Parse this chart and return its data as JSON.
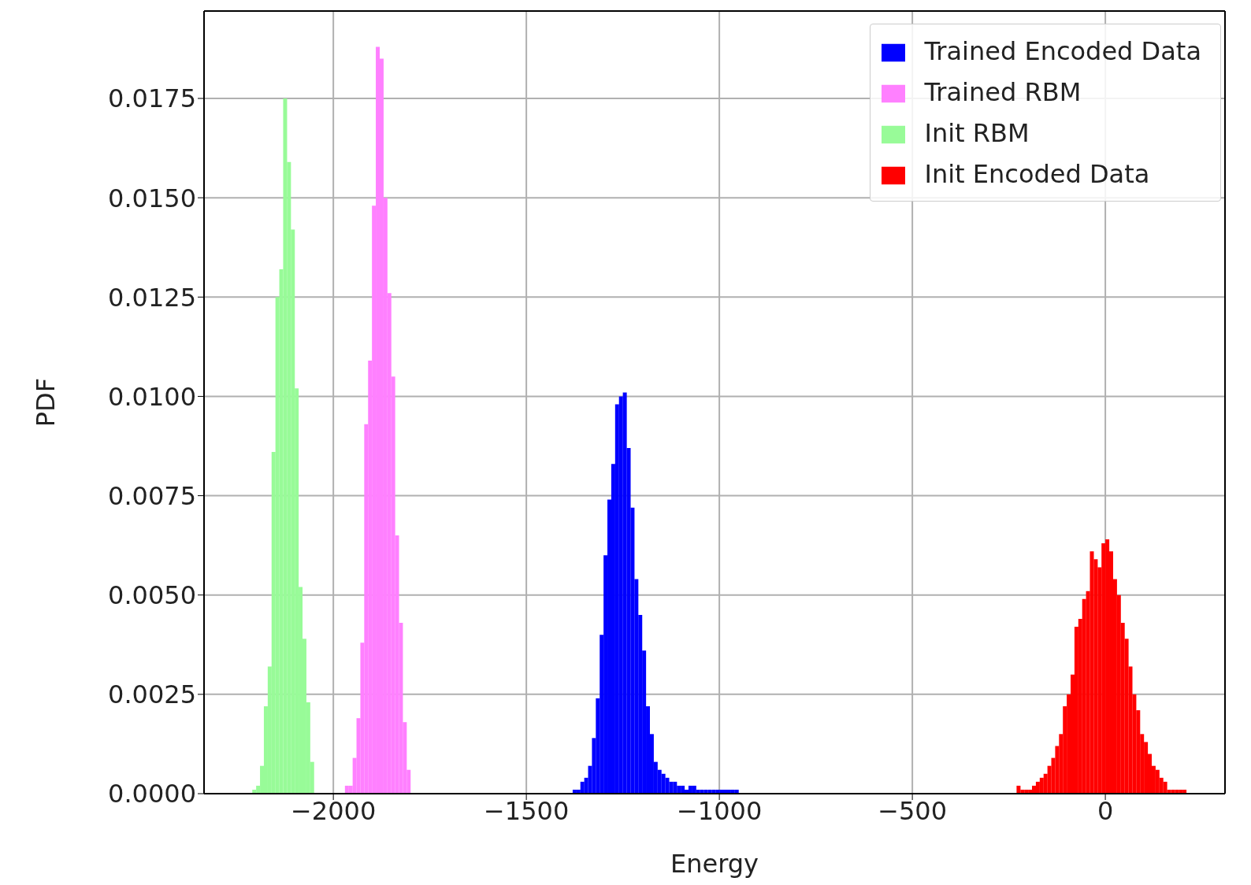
{
  "chart_data": {
    "type": "histogram",
    "xlabel": "Energy",
    "ylabel": "PDF",
    "xlim": [
      -2335,
      310
    ],
    "ylim": [
      0,
      0.0197
    ],
    "xticks": [
      {
        "value": -2000,
        "label": "−2000"
      },
      {
        "value": -1500,
        "label": "−1500"
      },
      {
        "value": -1000,
        "label": "−1000"
      },
      {
        "value": -500,
        "label": "−500"
      },
      {
        "value": 0,
        "label": "0"
      }
    ],
    "yticks": [
      {
        "value": 0,
        "label": "0.0000"
      },
      {
        "value": 0.0025,
        "label": "0.0025"
      },
      {
        "value": 0.005,
        "label": "0.0050"
      },
      {
        "value": 0.0075,
        "label": "0.0075"
      },
      {
        "value": 0.01,
        "label": "0.0100"
      },
      {
        "value": 0.0125,
        "label": "0.0125"
      },
      {
        "value": 0.015,
        "label": "0.0150"
      },
      {
        "value": 0.0175,
        "label": "0.0175"
      }
    ],
    "grid": true,
    "legend": "top right",
    "bins": [
      -2210,
      -2200,
      -2190,
      -2180,
      -2170,
      -2160,
      -2150,
      -2140,
      -2130,
      -2120,
      -2110,
      -2100,
      -2090,
      -2080,
      -2070,
      -2060,
      -2050,
      -2040,
      -2030,
      -2020,
      -2010,
      -2000,
      -1990,
      -1980,
      -1970,
      -1960,
      -1950,
      -1940,
      -1930,
      -1920,
      -1910,
      -1900,
      -1890,
      -1880,
      -1870,
      -1860,
      -1850,
      -1840,
      -1830,
      -1820,
      -1810,
      -1800,
      -1790,
      -1780,
      -1770,
      -1760,
      -1750,
      -1740,
      -1730,
      -1720,
      -1710,
      -1700,
      -1690,
      -1680,
      -1670,
      -1660,
      -1650,
      -1640,
      -1630,
      -1620,
      -1610,
      -1600,
      -1590,
      -1580,
      -1570,
      -1560,
      -1550,
      -1540,
      -1530,
      -1520,
      -1510,
      -1500,
      -1490,
      -1480,
      -1470,
      -1460,
      -1450,
      -1440,
      -1430,
      -1420,
      -1410,
      -1400,
      -1390,
      -1380,
      -1370,
      -1360,
      -1350,
      -1340,
      -1330,
      -1320,
      -1310,
      -1300,
      -1290,
      -1280,
      -1270,
      -1260,
      -1250,
      -1240,
      -1230,
      -1220,
      -1210,
      -1200,
      -1190,
      -1180,
      -1170,
      -1160,
      -1150,
      -1140,
      -1130,
      -1120,
      -1110,
      -1100,
      -1090,
      -1080,
      -1070,
      -1060,
      -1050,
      -1040,
      -1030,
      -1020,
      -1010,
      -1000,
      -990,
      -980,
      -970,
      -960,
      -950,
      -940,
      -930,
      -920,
      -910,
      -900,
      -890,
      -880,
      -870,
      -860,
      -850,
      -840,
      -830,
      -820,
      -810,
      -800,
      -790,
      -780,
      -770,
      -760,
      -750,
      -740,
      -730,
      -720,
      -710,
      -700,
      -690,
      -680,
      -670,
      -660,
      -650,
      -640,
      -630,
      -620,
      -610,
      -600,
      -590,
      -580,
      -570,
      -560,
      -550,
      -540,
      -530,
      -520,
      -510,
      -500,
      -490,
      -480,
      -470,
      -460,
      -450,
      -440,
      -430,
      -420,
      -410,
      -400,
      -390,
      -380,
      -370,
      -360,
      -350,
      -340,
      -330,
      -320,
      -310,
      -300,
      -290,
      -280,
      -270,
      -260,
      -250,
      -240,
      -230,
      -220,
      -210,
      -200,
      -190,
      -180,
      -170,
      -160,
      -150,
      -140,
      -130,
      -120,
      -110,
      -100,
      -90,
      -80,
      -70,
      -60,
      -50,
      -40,
      -30,
      -20,
      -10,
      0,
      10,
      20,
      30,
      40,
      50,
      60,
      70,
      80,
      90,
      100,
      110,
      120,
      130,
      140,
      150,
      160,
      170,
      180,
      190,
      200,
      210
    ],
    "series": [
      {
        "name": "Trained Encoded Data",
        "color": "#0000ff",
        "values": [
          null,
          null,
          null,
          null,
          null,
          null,
          null,
          null,
          null,
          null,
          null,
          null,
          null,
          null,
          null,
          null,
          null,
          null,
          null,
          null,
          null,
          null,
          null,
          null,
          null,
          null,
          null,
          null,
          null,
          null,
          null,
          null,
          null,
          null,
          null,
          null,
          null,
          null,
          null,
          null,
          null,
          null,
          null,
          null,
          null,
          null,
          null,
          null,
          null,
          null,
          null,
          null,
          null,
          null,
          null,
          null,
          null,
          null,
          null,
          null,
          null,
          null,
          null,
          null,
          null,
          null,
          null,
          null,
          null,
          null,
          null,
          null,
          null,
          null,
          null,
          null,
          null,
          null,
          null,
          null,
          null,
          null,
          null,
          0.0001,
          0.0001,
          0.0003,
          0.0004,
          0.0007,
          0.0014,
          0.0024,
          0.004,
          0.006,
          0.0074,
          0.0083,
          0.0098,
          0.01,
          0.0101,
          0.0087,
          0.0072,
          0.0054,
          0.0045,
          0.0036,
          0.0022,
          0.0015,
          0.0008,
          0.0006,
          0.0005,
          0.0004,
          0.0003,
          0.0003,
          0.0002,
          0.0002,
          0.0001,
          0.0002,
          0.0002,
          0.0001,
          0.0001,
          0.0001,
          0.0001,
          0.0001,
          0.0001,
          0.0001,
          0.0001,
          0.0001,
          0.0001,
          0.0001,
          null,
          null,
          null,
          null,
          null,
          null,
          null,
          null,
          null,
          null,
          null,
          null,
          null,
          null,
          null,
          null,
          null,
          null,
          null,
          null,
          null,
          null,
          null,
          null,
          null,
          null,
          null,
          null,
          null,
          null,
          null,
          null,
          null,
          null,
          null,
          null,
          null,
          null,
          null,
          null,
          null,
          null,
          null,
          null,
          null,
          null,
          null,
          null,
          null,
          null,
          null,
          null,
          null,
          null,
          null,
          null,
          null,
          null,
          null,
          null,
          null,
          null,
          null,
          null,
          null,
          null,
          null,
          null,
          null,
          null,
          null,
          null,
          null,
          null,
          null,
          null,
          null,
          null,
          null,
          null,
          null,
          null,
          null,
          null,
          null,
          null,
          null,
          null,
          null,
          null,
          null,
          null,
          null,
          null,
          null,
          null,
          null,
          null,
          null,
          null,
          null,
          null,
          null,
          null,
          null,
          null,
          null,
          null,
          null,
          null,
          null,
          null,
          null,
          null,
          null,
          null
        ]
      },
      {
        "name": "Trained RBM",
        "color": "#ff80ff",
        "values": [
          null,
          null,
          null,
          null,
          null,
          null,
          null,
          null,
          null,
          null,
          null,
          null,
          null,
          null,
          null,
          null,
          null,
          null,
          null,
          null,
          null,
          null,
          null,
          null,
          0.0002,
          0.0002,
          0.0009,
          0.0019,
          0.0038,
          0.0093,
          0.0109,
          0.0148,
          0.0188,
          0.0185,
          0.015,
          0.0126,
          0.0105,
          0.0065,
          0.0043,
          0.0018,
          0.0006,
          null,
          null,
          null,
          null,
          null,
          null,
          null,
          null,
          null,
          null,
          null,
          null,
          null,
          null,
          null,
          null,
          null,
          null,
          null,
          null,
          null,
          null,
          null,
          null,
          null,
          null,
          null,
          null,
          null,
          null,
          null,
          null,
          null,
          null,
          null,
          null,
          null,
          null,
          null,
          null,
          null,
          null,
          null,
          null,
          null,
          null,
          null,
          null,
          null,
          null,
          null,
          null,
          null,
          null,
          null,
          null,
          null,
          null,
          null,
          null,
          null,
          null,
          null,
          null,
          null,
          null,
          null,
          null,
          null,
          null,
          null,
          null,
          null,
          null,
          null,
          null,
          null,
          null,
          null,
          null,
          null,
          null,
          null,
          null,
          null,
          null,
          null,
          null,
          null,
          null,
          null,
          null,
          null,
          null,
          null,
          null,
          null,
          null,
          null,
          null,
          null,
          null,
          null,
          null,
          null,
          null,
          null,
          null,
          null,
          null,
          null,
          null,
          null,
          null,
          null,
          null,
          null,
          null,
          null,
          null,
          null,
          null,
          null,
          null,
          null,
          null,
          null,
          null,
          null,
          null,
          null,
          null,
          null,
          null,
          null,
          null,
          null,
          null,
          null,
          null,
          null,
          null,
          null,
          null,
          null,
          null,
          null,
          null,
          null,
          null,
          null,
          null,
          null,
          null,
          null,
          null,
          null,
          null,
          null,
          null,
          null,
          null,
          null,
          null,
          null,
          null,
          null,
          null,
          null,
          null,
          null,
          null,
          null,
          null,
          null,
          null,
          null,
          null,
          null,
          null,
          null,
          null,
          null,
          null,
          null,
          null,
          null,
          null,
          null,
          null,
          null,
          null,
          null,
          null,
          null,
          null,
          null,
          null,
          null,
          null,
          null
        ]
      },
      {
        "name": "Init RBM",
        "color": "#98fb98",
        "values": [
          0.0001,
          0.0002,
          0.0007,
          0.0022,
          0.0032,
          0.0086,
          0.0125,
          0.0132,
          0.0175,
          0.0159,
          0.0142,
          0.0102,
          0.0052,
          0.0039,
          0.0023,
          0.0008,
          null,
          null,
          null,
          null,
          null,
          null,
          null,
          null,
          null,
          null,
          null,
          null,
          null,
          null,
          null,
          null,
          null,
          null,
          null,
          null,
          null,
          null,
          null,
          null,
          null,
          null,
          null,
          null,
          null,
          null,
          null,
          null,
          null,
          null,
          null,
          null,
          null,
          null,
          null,
          null,
          null,
          null,
          null,
          null,
          null,
          null,
          null,
          null,
          null,
          null,
          null,
          null,
          null,
          null,
          null,
          null,
          null,
          null,
          null,
          null,
          null,
          null,
          null,
          null,
          null,
          null,
          null,
          null,
          null,
          null,
          null,
          null,
          null,
          null,
          null,
          null,
          null,
          null,
          null,
          null,
          null,
          null,
          null,
          null,
          null,
          null,
          null,
          null,
          null,
          null,
          null,
          null,
          null,
          null,
          null,
          null,
          null,
          null,
          null,
          null,
          null,
          null,
          null,
          null,
          null,
          null,
          null,
          null,
          null,
          null,
          null,
          null,
          null,
          null,
          null,
          null,
          null,
          null,
          null,
          null,
          null,
          null,
          null,
          null,
          null,
          null,
          null,
          null,
          null,
          null,
          null,
          null,
          null,
          null,
          null,
          null,
          null,
          null,
          null,
          null,
          null,
          null,
          null,
          null,
          null,
          null,
          null,
          null,
          null,
          null,
          null,
          null,
          null,
          null,
          null,
          null,
          null,
          null,
          null,
          null,
          null,
          null,
          null,
          null,
          null,
          null,
          null,
          null,
          null,
          null,
          null,
          null,
          null,
          null,
          null,
          null,
          null,
          null,
          null,
          null,
          null,
          null,
          null,
          null,
          null,
          null,
          null,
          null,
          null,
          null,
          null,
          null,
          null,
          null,
          null,
          null,
          null,
          null,
          null,
          null,
          null,
          null,
          null,
          null,
          null,
          null,
          null,
          null,
          null,
          null,
          null,
          null,
          null,
          null,
          null,
          null,
          null,
          null,
          null,
          null,
          null,
          null,
          null,
          null,
          null,
          null
        ]
      },
      {
        "name": "Init Encoded Data",
        "color": "#ff0000",
        "values": [
          null,
          null,
          null,
          null,
          null,
          null,
          null,
          null,
          null,
          null,
          null,
          null,
          null,
          null,
          null,
          null,
          null,
          null,
          null,
          null,
          null,
          null,
          null,
          null,
          null,
          null,
          null,
          null,
          null,
          null,
          null,
          null,
          null,
          null,
          null,
          null,
          null,
          null,
          null,
          null,
          null,
          null,
          null,
          null,
          null,
          null,
          null,
          null,
          null,
          null,
          null,
          null,
          null,
          null,
          null,
          null,
          null,
          null,
          null,
          null,
          null,
          null,
          null,
          null,
          null,
          null,
          null,
          null,
          null,
          null,
          null,
          null,
          null,
          null,
          null,
          null,
          null,
          null,
          null,
          null,
          null,
          null,
          null,
          null,
          null,
          null,
          null,
          null,
          null,
          null,
          null,
          null,
          null,
          null,
          null,
          null,
          null,
          null,
          null,
          null,
          null,
          null,
          null,
          null,
          null,
          null,
          null,
          null,
          null,
          null,
          null,
          null,
          null,
          null,
          null,
          null,
          null,
          null,
          null,
          null,
          null,
          null,
          null,
          null,
          null,
          null,
          null,
          null,
          null,
          null,
          null,
          null,
          null,
          null,
          null,
          null,
          null,
          null,
          null,
          null,
          null,
          null,
          null,
          null,
          null,
          null,
          null,
          null,
          null,
          null,
          null,
          null,
          null,
          null,
          null,
          null,
          null,
          null,
          null,
          null,
          null,
          null,
          null,
          null,
          null,
          null,
          null,
          null,
          null,
          null,
          null,
          null,
          null,
          null,
          null,
          null,
          null,
          null,
          null,
          null,
          null,
          null,
          null,
          null,
          null,
          null,
          null,
          null,
          null,
          null,
          null,
          null,
          null,
          null,
          null,
          null,
          null,
          null,
          0.0002,
          0.0001,
          0.0001,
          0.0001,
          0.0002,
          0.0003,
          0.0004,
          0.0005,
          0.0007,
          0.0009,
          0.0012,
          0.0015,
          0.0022,
          0.0025,
          0.003,
          0.0042,
          0.0044,
          0.0049,
          0.0051,
          0.0061,
          0.0059,
          0.0057,
          0.0063,
          0.0064,
          0.0061,
          0.0054,
          0.005,
          0.0043,
          0.0039,
          0.0032,
          0.0025,
          0.0021,
          0.0015,
          0.0013,
          0.001,
          0.0007,
          0.0006,
          0.0004,
          0.0003,
          0.0001,
          0.0001,
          0.0001,
          0.0001,
          0.0001
        ]
      }
    ]
  }
}
